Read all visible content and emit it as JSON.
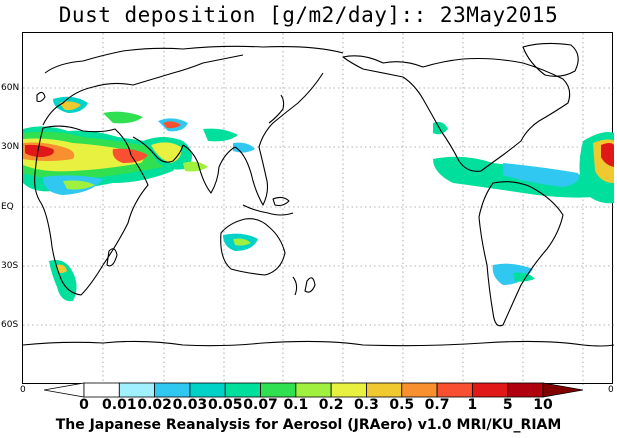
{
  "title": "Dust deposition [g/m2/day]:: 23May2015",
  "latitude_labels": [
    "60N",
    "30N",
    "EQ",
    "30S",
    "60S"
  ],
  "axis_zero_left": "0",
  "axis_zero_right": "0",
  "legend": {
    "labels": [
      "0",
      "0.01",
      "0.02",
      "0.03",
      "0.05",
      "0.07",
      "0.1",
      "0.2",
      "0.3",
      "0.5",
      "0.7",
      "1",
      "5",
      "10"
    ],
    "colors": [
      "#ffffff",
      "#a0f0ff",
      "#30c8f0",
      "#00d2c8",
      "#00e09c",
      "#30e050",
      "#a0f040",
      "#e8f040",
      "#f0c830",
      "#f89030",
      "#f85030",
      "#e01818",
      "#b00010",
      "#800000"
    ],
    "under_color": "#ffffff",
    "over_color": "#800000"
  },
  "footer": "The Japanese Reanalysis for Aerosol (JRAero) v1.0 MRI/KU_RIAM"
}
